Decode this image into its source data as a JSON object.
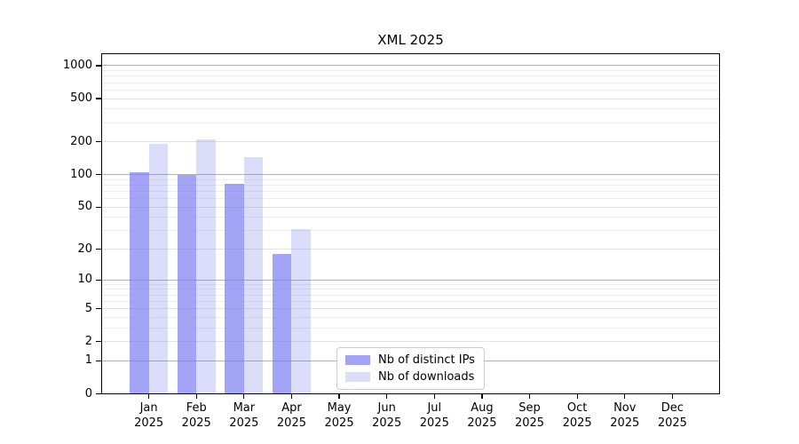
{
  "title": "XML 2025",
  "chart_data": {
    "type": "bar",
    "title": "XML 2025",
    "y_scale": "log1p",
    "grid": "horizontal",
    "legend_position": "bottom-center",
    "x_axis": {
      "months": [
        "Jan",
        "Feb",
        "Mar",
        "Apr",
        "May",
        "Jun",
        "Jul",
        "Aug",
        "Sep",
        "Oct",
        "Nov",
        "Dec"
      ],
      "year": "2025"
    },
    "categories": [
      "Jan 2025",
      "Feb 2025",
      "Mar 2025",
      "Apr 2025",
      "May 2025",
      "Jun 2025",
      "Jul 2025",
      "Aug 2025",
      "Sep 2025",
      "Oct 2025",
      "Nov 2025",
      "Dec 2025"
    ],
    "y_axis": {
      "major_ticks": [
        0,
        1,
        2,
        5,
        10,
        20,
        50,
        100,
        200,
        500,
        1000
      ],
      "decade_lines": [
        1,
        10,
        100,
        1000
      ],
      "minor_lines": [
        3,
        4,
        6,
        7,
        8,
        9,
        30,
        40,
        60,
        70,
        80,
        90,
        300,
        400,
        600,
        700,
        800,
        900
      ],
      "ylim": [
        0,
        1300
      ]
    },
    "series": [
      {
        "name": "Nb of distinct IPs",
        "color": "rgba(121,121,241,0.68)",
        "values": [
          105,
          100,
          82,
          18,
          0,
          0,
          0,
          0,
          0,
          0,
          0,
          0
        ]
      },
      {
        "name": "Nb of downloads",
        "color": "rgba(121,121,241,0.26)",
        "values": [
          192,
          210,
          146,
          31,
          0,
          0,
          0,
          0,
          0,
          0,
          0,
          0
        ]
      }
    ],
    "colors": {
      "decade_grid": "#b3b3b3",
      "major_grid": "#e3e3e3",
      "minor_grid": "#eeeeee",
      "axis": "#000000",
      "legend_border": "#cccccc"
    }
  }
}
